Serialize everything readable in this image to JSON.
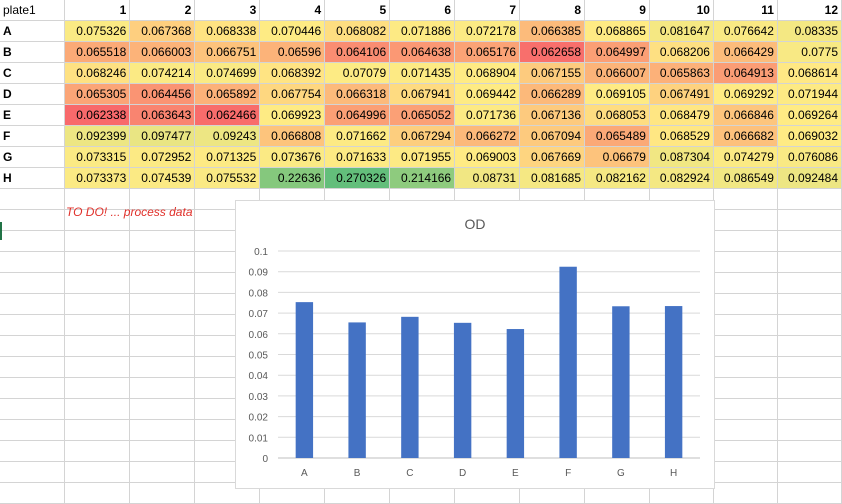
{
  "sheet": {
    "corner": "plate1",
    "columns": [
      "1",
      "2",
      "3",
      "4",
      "5",
      "6",
      "7",
      "8",
      "9",
      "10",
      "11",
      "12"
    ],
    "rows": [
      {
        "label": "A",
        "values": [
          "0.075326",
          "0.067368",
          "0.068338",
          "0.070446",
          "0.068082",
          "0.071886",
          "0.072178",
          "0.066385",
          "0.068865",
          "0.081647",
          "0.076642",
          "0.08335"
        ]
      },
      {
        "label": "B",
        "values": [
          "0.065518",
          "0.066003",
          "0.066751",
          "0.06596",
          "0.064106",
          "0.064638",
          "0.065176",
          "0.062658",
          "0.064997",
          "0.068206",
          "0.066429",
          "0.0775"
        ]
      },
      {
        "label": "C",
        "values": [
          "0.068246",
          "0.074214",
          "0.074699",
          "0.068392",
          "0.07079",
          "0.071435",
          "0.068904",
          "0.067155",
          "0.066007",
          "0.065863",
          "0.064913",
          "0.068614"
        ]
      },
      {
        "label": "D",
        "values": [
          "0.065305",
          "0.064456",
          "0.065892",
          "0.067754",
          "0.066318",
          "0.067941",
          "0.069442",
          "0.066289",
          "0.069105",
          "0.067491",
          "0.069292",
          "0.071944"
        ]
      },
      {
        "label": "E",
        "values": [
          "0.062338",
          "0.063643",
          "0.062466",
          "0.069923",
          "0.064996",
          "0.065052",
          "0.071736",
          "0.067136",
          "0.068053",
          "0.068479",
          "0.066846",
          "0.069264"
        ]
      },
      {
        "label": "F",
        "values": [
          "0.092399",
          "0.097477",
          "0.09243",
          "0.066808",
          "0.071662",
          "0.067294",
          "0.066272",
          "0.067094",
          "0.065489",
          "0.068529",
          "0.066682",
          "0.069032"
        ]
      },
      {
        "label": "G",
        "values": [
          "0.073315",
          "0.072952",
          "0.071325",
          "0.073676",
          "0.071633",
          "0.071955",
          "0.069003",
          "0.067669",
          "0.06679",
          "0.087304",
          "0.074279",
          "0.076086"
        ]
      },
      {
        "label": "H",
        "values": [
          "0.073373",
          "0.074539",
          "0.075532",
          "0.22636",
          "0.270326",
          "0.214166",
          "0.08731",
          "0.081685",
          "0.082162",
          "0.082924",
          "0.086549",
          "0.092484"
        ]
      }
    ],
    "colors": {
      "low": "#f8696b",
      "mid": "#ffeb84",
      "high": "#63be7b"
    }
  },
  "note": "TO DO! ... process data",
  "chart_data": {
    "type": "bar",
    "title": "OD",
    "categories": [
      "A",
      "B",
      "C",
      "D",
      "E",
      "F",
      "G",
      "H"
    ],
    "values": [
      0.0753,
      0.0655,
      0.0682,
      0.0653,
      0.0623,
      0.0924,
      0.0733,
      0.0734
    ],
    "ylim": [
      0,
      0.1
    ],
    "yticks": [
      "0",
      "0.01",
      "0.02",
      "0.03",
      "0.04",
      "0.05",
      "0.06",
      "0.07",
      "0.08",
      "0.09",
      "0.1"
    ],
    "grid": true,
    "bar_color": "#4472c4"
  }
}
